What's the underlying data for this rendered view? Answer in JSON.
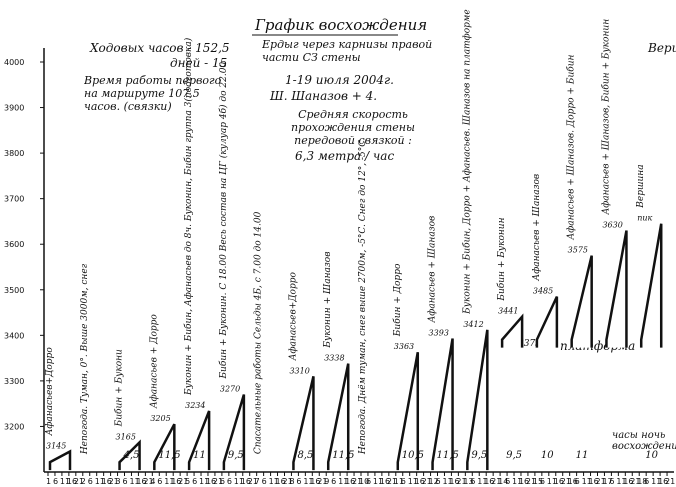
{
  "chart_data": {
    "type": "bar",
    "title": "График восхождения",
    "ylim": [
      3100,
      4000
    ],
    "y_ticks": [
      4000,
      3900,
      3800,
      3700,
      3600,
      3500,
      3400,
      3300,
      3200
    ],
    "x_tick_labels": [
      "1",
      "6",
      "11",
      "16",
      "21",
      "2",
      "6",
      "11",
      "16",
      "21",
      "3",
      "6",
      "11",
      "16",
      "21",
      "4",
      "6",
      "11",
      "16",
      "21",
      "5",
      "6",
      "11",
      "16",
      "21",
      "6",
      "6",
      "11",
      "16",
      "21",
      "7",
      "6",
      "11",
      "16",
      "21",
      "8",
      "6",
      "11",
      "16",
      "21",
      "9",
      "6",
      "11",
      "16",
      "21",
      "10",
      "6",
      "11",
      "16",
      "21",
      "11",
      "6",
      "11",
      "16",
      "21",
      "12",
      "6",
      "11",
      "16",
      "21",
      "13",
      "6",
      "11",
      "16",
      "21",
      "14",
      "6",
      "11",
      "16",
      "21",
      "15",
      "6",
      "11",
      "16",
      "21",
      "16",
      "6",
      "11",
      "16",
      "21",
      "17",
      "6",
      "11",
      "16",
      "21",
      "18",
      "6",
      "11",
      "16",
      "21"
    ],
    "bars": [
      {
        "start": 3104,
        "end": 3145,
        "label": "3145",
        "team": "Афанасьев+Дорро",
        "hours": ""
      },
      {
        "start": 3104,
        "end": 3104,
        "label": "",
        "team": "Непогода. Туман, 0°. Выше 3000м, снег",
        "hours": ""
      },
      {
        "start": 3104,
        "end": 3165,
        "label": "3165",
        "team": "Бибин + Букони",
        "hours": "4,5"
      },
      {
        "start": 3104,
        "end": 3205,
        "label": "3205",
        "team": "Афанасьев + Дорро",
        "hours": "11,5"
      },
      {
        "start": 3104,
        "end": 3234,
        "label": "3234",
        "team": "Буконин + Бибин, Афанасьев до 8ч. Буконин, Бибин группа 3(подготовка)",
        "hours": "11"
      },
      {
        "start": 3104,
        "end": 3270,
        "label": "3270",
        "team": "Бибин + Буконин. С 18.00 Весь состав на ЦГ (кулуар 4б) до 22.00",
        "hours": "9,5"
      },
      {
        "start": 3104,
        "end": 3104,
        "label": "",
        "team": "Спасательные работы Сельды 4Б, с 7.00 до 14.00",
        "hours": ""
      },
      {
        "start": 3104,
        "end": 3310,
        "label": "3310",
        "team": "Афанасьев+Дорро",
        "hours": "8,5"
      },
      {
        "start": 3104,
        "end": 3338,
        "label": "3338",
        "team": "Буконин + Шаназов",
        "hours": "11,5"
      },
      {
        "start": 3104,
        "end": 3104,
        "label": "",
        "team": "Непогода. Днём туман, снег выше 2700м, -5°C. Снег до 12°, -5°C",
        "hours": ""
      },
      {
        "start": 3104,
        "end": 3363,
        "label": "3363",
        "team": "Бибин + Дорро",
        "hours": "10,5"
      },
      {
        "start": 3104,
        "end": 3393,
        "label": "3393",
        "team": "Афанасьев + Шаназов",
        "hours": "11,5"
      },
      {
        "start": 3104,
        "end": 3412,
        "label": "3412",
        "team": "Буконин + Бибин, Дорро + Афанасьев. Шаназов на платформе",
        "hours": "9,5"
      },
      {
        "start": 3373,
        "end": 3441,
        "label": "3441",
        "team": "Бибин + Буконин",
        "hours": "9,5"
      },
      {
        "start": 3373,
        "end": 3485,
        "label": "3485",
        "team": "Афанасьев + Шаназов",
        "hours": "10"
      },
      {
        "start": 3373,
        "end": 3575,
        "label": "3575",
        "team": "Афанасьев + Шаназов. Дорро + Бибин",
        "hours": "11"
      },
      {
        "start": 3373,
        "end": 3630,
        "label": "3630",
        "team": "Афанасьев + Шаназов, Бибин + Буконин",
        "hours": ""
      },
      {
        "start": 3373,
        "end": 3645,
        "label": "пик",
        "team": "Вершина",
        "hours": "10"
      }
    ],
    "annotations": {
      "top_left": [
        "Ходовых часов - 152,5",
        "дней - 15",
        "Время работы первого на маршруте 107,5 часов. (связки)"
      ],
      "top_center": [
        "Ердыг через карнизы правой части СЗ стены",
        "1-19 июля 2004г.",
        "Ш. Шаназов + 4."
      ],
      "speed": [
        "Средняя скорость прохождения стены передовой связкой :",
        "6,3 метра / час"
      ],
      "platform": "платформа",
      "platform_value": "3373",
      "night": "часы ночь восхождения",
      "peak_top": "Верш"
    }
  }
}
